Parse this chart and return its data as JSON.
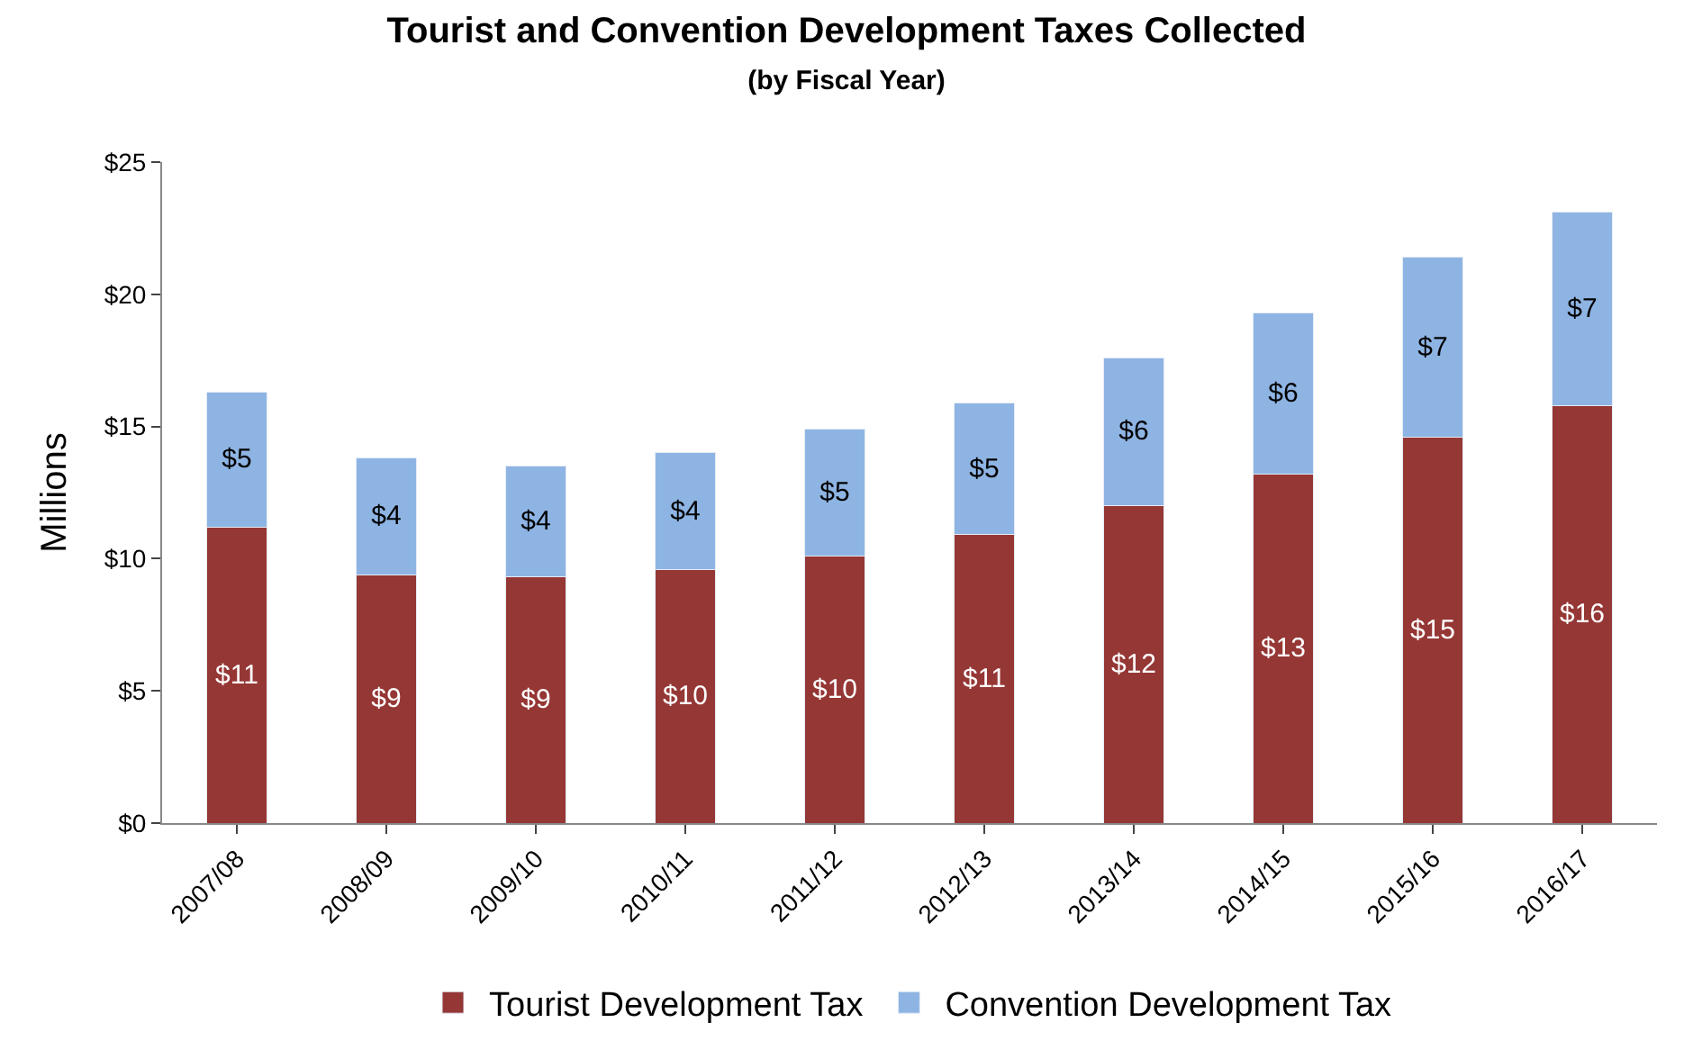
{
  "chart_data": {
    "type": "bar",
    "stacked": true,
    "title": "Tourist and Convention Development Taxes Collected",
    "subtitle": "(by Fiscal Year)",
    "ylabel": "Millions",
    "categories": [
      "2007/08",
      "2008/09",
      "2009/10",
      "2010/11",
      "2011/12",
      "2012/13",
      "2013/14",
      "2014/15",
      "2015/16",
      "2016/17"
    ],
    "series": [
      {
        "name": "Tourist Development Tax",
        "color": "#953735",
        "values": [
          11.2,
          9.4,
          9.3,
          9.6,
          10.1,
          10.9,
          12.0,
          13.2,
          14.6,
          15.8
        ],
        "value_labels": [
          "$11",
          "$9",
          "$9",
          "$10",
          "$10",
          "$11",
          "$12",
          "$13",
          "$15",
          "$16"
        ]
      },
      {
        "name": "Convention Development Tax",
        "color": "#8eb4e3",
        "values": [
          5.1,
          4.4,
          4.2,
          4.4,
          4.8,
          5.0,
          5.6,
          6.1,
          6.8,
          7.3
        ],
        "value_labels": [
          "$5",
          "$4",
          "$4",
          "$4",
          "$5",
          "$5",
          "$6",
          "$6",
          "$7",
          "$7"
        ]
      }
    ],
    "ylim": [
      0,
      25
    ],
    "yticks": [
      {
        "value": 0,
        "label": "$0"
      },
      {
        "value": 5,
        "label": "$5"
      },
      {
        "value": 10,
        "label": "$10"
      },
      {
        "value": 15,
        "label": "$15"
      },
      {
        "value": 20,
        "label": "$20"
      },
      {
        "value": 25,
        "label": "$25"
      }
    ],
    "legend": "bottom"
  }
}
